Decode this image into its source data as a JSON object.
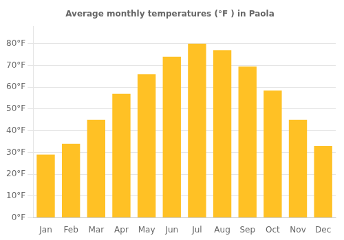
{
  "chart_data": {
    "type": "bar",
    "title": "Average monthly temperatures (°F ) in Paola",
    "categories": [
      "Jan",
      "Feb",
      "Mar",
      "Apr",
      "May",
      "Jun",
      "Jul",
      "Aug",
      "Sep",
      "Oct",
      "Nov",
      "Dec"
    ],
    "values": [
      29,
      34,
      45,
      57,
      66,
      74,
      80,
      77,
      69.5,
      58.5,
      45,
      33
    ],
    "color": "#FFC125",
    "ylim": [
      0,
      88
    ],
    "yticks": [
      {
        "value": 0,
        "label": "0°F"
      },
      {
        "value": 10,
        "label": "10°F"
      },
      {
        "value": 20,
        "label": "20°F"
      },
      {
        "value": 30,
        "label": "30°F"
      },
      {
        "value": 40,
        "label": "40°F"
      },
      {
        "value": 50,
        "label": "50°F"
      },
      {
        "value": 60,
        "label": "60°F"
      },
      {
        "value": 70,
        "label": "70°F"
      },
      {
        "value": 80,
        "label": "80°F"
      }
    ],
    "grid": true
  }
}
